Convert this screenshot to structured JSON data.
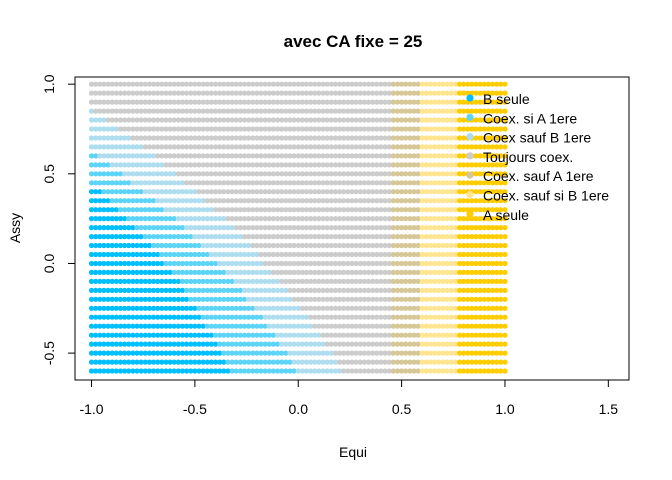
{
  "chart_data": {
    "type": "scatter",
    "title": "avec CA fixe = 25",
    "xlabel": "Equi",
    "ylabel": "Assy",
    "xlim": [
      -1.08,
      1.6
    ],
    "ylim": [
      -0.65,
      1.04
    ],
    "x_ticks": [
      -1.0,
      -0.5,
      0.0,
      0.5,
      1.0,
      1.5
    ],
    "x_tick_labels": [
      "-1.0",
      "-0.5",
      "0.0",
      "0.5",
      "1.0",
      "1.5"
    ],
    "y_ticks": [
      -0.5,
      0.0,
      0.5,
      1.0
    ],
    "y_tick_labels": [
      "-0.5",
      "0.0",
      "0.5",
      "1.0"
    ],
    "grid": false,
    "legend_position": "top-right",
    "grid_sampling": {
      "x_range": [
        -1.0,
        1.0
      ],
      "x_step": 0.02,
      "y_range": [
        -0.6,
        1.0
      ],
      "y_step": 0.05
    },
    "series": [
      {
        "name": "B seule",
        "color": "#00BFFF"
      },
      {
        "name": "Coex. si A 1ere",
        "color": "#5CD4F8"
      },
      {
        "name": "Coex sauf B 1ere",
        "color": "#ADDDEE"
      },
      {
        "name": "Toujours coex.",
        "color": "#CCCCCC"
      },
      {
        "name": "Coex. sauf A 1ere",
        "color": "#D6C796"
      },
      {
        "name": "Coex. sauf si B 1ere",
        "color": "#FFE58F"
      },
      {
        "name": "A seule",
        "color": "#FFCC00"
      }
    ],
    "regions": {
      "x_thresholds": [
        0.45,
        0.59,
        0.77
      ],
      "curve_boundaries_x_at_y_min": [
        -0.33,
        0.0,
        0.22
      ],
      "curve_boundaries_y_at_x_min": [
        0.45,
        0.62,
        0.86
      ]
    }
  }
}
